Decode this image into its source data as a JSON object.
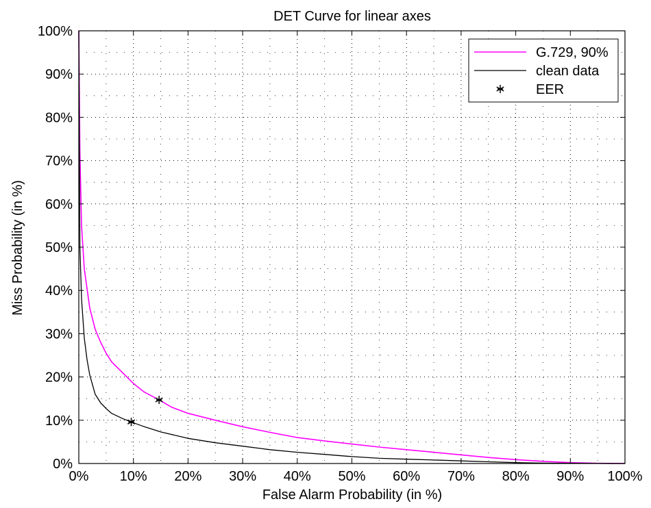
{
  "chart_data": {
    "type": "line",
    "title": "DET Curve for linear axes",
    "xlabel": "False Alarm Probability (in %)",
    "ylabel": "Miss Probability (in %)",
    "xlim": [
      0,
      100
    ],
    "ylim": [
      0,
      100
    ],
    "x_ticks": [
      0,
      10,
      20,
      30,
      40,
      50,
      60,
      70,
      80,
      90,
      100
    ],
    "y_ticks": [
      0,
      10,
      20,
      30,
      40,
      50,
      60,
      70,
      80,
      90,
      100
    ],
    "x_tick_labels": [
      "0%",
      "10%",
      "20%",
      "30%",
      "40%",
      "50%",
      "60%",
      "70%",
      "80%",
      "90%",
      "100%"
    ],
    "y_tick_labels": [
      "0%",
      "10%",
      "20%",
      "30%",
      "40%",
      "50%",
      "60%",
      "70%",
      "80%",
      "90%",
      "100%"
    ],
    "grid": true,
    "grid_style": "dotted",
    "minor_grid": true,
    "legend_position": "top-right",
    "series": [
      {
        "name": "G.729, 90%",
        "color": "#ff00ff",
        "x": [
          0,
          0.2,
          0.5,
          1,
          2,
          3,
          4,
          5,
          6,
          8,
          10,
          12,
          14.7,
          17,
          20,
          25,
          30,
          35,
          40,
          45,
          50,
          55,
          60,
          65,
          70,
          75,
          80,
          85,
          90,
          95,
          100
        ],
        "y": [
          100,
          72,
          55,
          45,
          36,
          31,
          28,
          25.5,
          23.5,
          21,
          18.5,
          16.5,
          14.7,
          13,
          11.6,
          10,
          8.5,
          7.2,
          6,
          5.2,
          4.5,
          3.8,
          3.2,
          2.6,
          2,
          1.4,
          0.9,
          0.5,
          0.2,
          0.05,
          0
        ]
      },
      {
        "name": "clean data",
        "color": "#000000",
        "x": [
          0,
          0.2,
          0.5,
          1,
          1.5,
          2,
          3,
          4,
          5,
          6,
          8,
          9.6,
          12,
          15,
          20,
          25,
          30,
          35,
          40,
          45,
          50,
          55,
          60,
          65,
          70,
          75,
          80,
          85,
          90,
          95,
          100
        ],
        "y": [
          100,
          50,
          38,
          29,
          24,
          20.5,
          16,
          14,
          12.7,
          11.6,
          10.4,
          9.6,
          8.5,
          7.3,
          5.8,
          4.8,
          4,
          3.2,
          2.6,
          2.1,
          1.6,
          1.2,
          1,
          0.8,
          0.6,
          0.4,
          0.2,
          0.1,
          0.05,
          0.02,
          0
        ]
      }
    ],
    "markers": {
      "name": "EER",
      "symbol": "*",
      "color": "#000000",
      "points": [
        {
          "x": 14.7,
          "y": 14.7
        },
        {
          "x": 9.6,
          "y": 9.6
        }
      ]
    }
  }
}
